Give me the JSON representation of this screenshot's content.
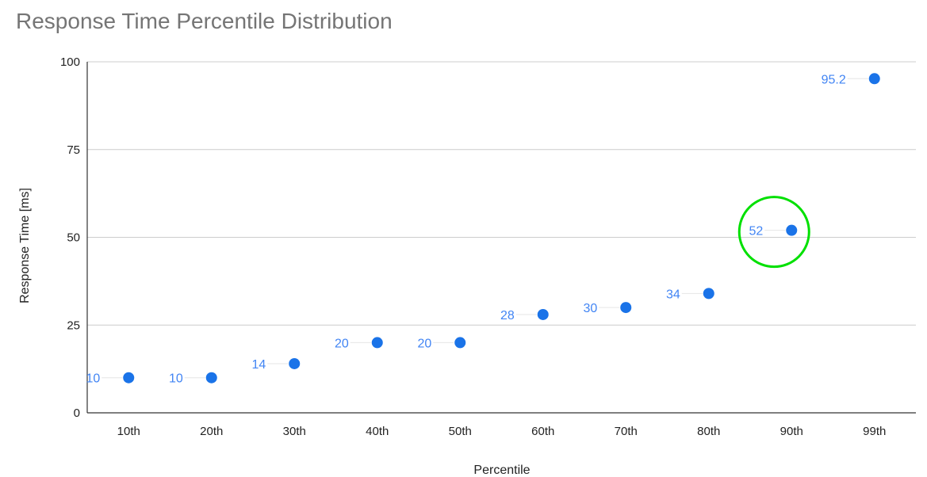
{
  "chart_data": {
    "type": "scatter",
    "title": "Response Time Percentile Distribution",
    "xlabel": "Percentile",
    "ylabel": "Response Time [ms]",
    "categories": [
      "10th",
      "20th",
      "30th",
      "40th",
      "50th",
      "60th",
      "70th",
      "80th",
      "90th",
      "99th"
    ],
    "values": [
      10,
      10,
      14,
      20,
      20,
      28,
      30,
      34,
      52,
      95.2
    ],
    "data_labels": [
      "10",
      "10",
      "14",
      "20",
      "20",
      "28",
      "30",
      "34",
      "52",
      "95.2"
    ],
    "ylim": [
      0,
      100
    ],
    "yticks": [
      "0",
      "25",
      "50",
      "75",
      "100"
    ],
    "grid": true,
    "legend": "none",
    "highlight": {
      "category": "90th",
      "shape": "circle"
    },
    "colors": {
      "point": "#1a73e8",
      "label": "#4285f4",
      "highlight": "#00e000",
      "grid": "#cccccc",
      "axis": "#333333",
      "title": "#757575"
    }
  }
}
